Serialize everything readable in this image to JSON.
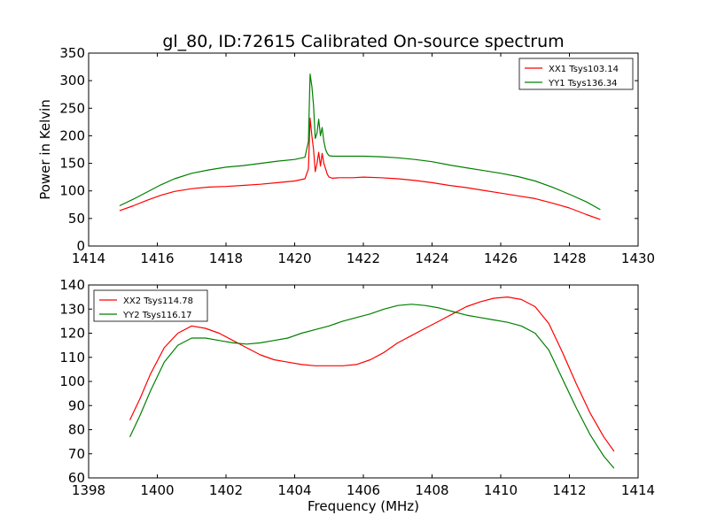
{
  "figure": {
    "title": "gl_80, ID:72615 Calibrated On-source spectrum",
    "xlabel": "Frequency (MHz)"
  },
  "chart_data": [
    {
      "type": "line",
      "title": "gl_80, ID:72615 Calibrated On-source spectrum",
      "xlabel": "",
      "ylabel": "Power in Kelvin",
      "xlim": [
        1414,
        1430
      ],
      "ylim": [
        0,
        350
      ],
      "xticks": [
        1414,
        1416,
        1418,
        1420,
        1422,
        1424,
        1426,
        1428,
        1430
      ],
      "yticks": [
        0,
        50,
        100,
        150,
        200,
        250,
        300,
        350
      ],
      "grid": false,
      "legend_position": "upper right",
      "series": [
        {
          "name": "XX1 Tsys103.14",
          "color": "#ff0000",
          "x": [
            1414.9,
            1415.3,
            1415.7,
            1416.1,
            1416.5,
            1417.0,
            1417.5,
            1418.0,
            1418.5,
            1419.0,
            1419.5,
            1420.0,
            1420.3,
            1420.4,
            1420.45,
            1420.5,
            1420.55,
            1420.6,
            1420.65,
            1420.7,
            1420.75,
            1420.8,
            1420.85,
            1420.9,
            1420.95,
            1421.0,
            1421.1,
            1421.3,
            1421.7,
            1422.0,
            1422.5,
            1423.0,
            1423.5,
            1424.0,
            1424.5,
            1425.0,
            1425.5,
            1426.0,
            1426.5,
            1427.0,
            1427.5,
            1428.0,
            1428.5,
            1428.9
          ],
          "y": [
            64,
            73,
            83,
            92,
            99,
            104,
            107,
            108,
            110,
            112,
            115,
            118,
            122,
            140,
            232,
            200,
            175,
            135,
            150,
            170,
            145,
            168,
            150,
            140,
            130,
            125,
            123,
            124,
            124,
            125,
            124,
            122,
            119,
            115,
            110,
            106,
            101,
            96,
            91,
            86,
            78,
            69,
            57,
            48
          ]
        },
        {
          "name": "YY1 Tsys136.34",
          "color": "#008000",
          "x": [
            1414.9,
            1415.3,
            1415.7,
            1416.1,
            1416.5,
            1417.0,
            1417.5,
            1418.0,
            1418.5,
            1419.0,
            1419.5,
            1420.0,
            1420.3,
            1420.4,
            1420.45,
            1420.5,
            1420.55,
            1420.6,
            1420.65,
            1420.7,
            1420.75,
            1420.8,
            1420.85,
            1420.9,
            1420.95,
            1421.0,
            1421.1,
            1421.3,
            1421.7,
            1422.0,
            1422.5,
            1423.0,
            1423.5,
            1424.0,
            1424.5,
            1425.0,
            1425.5,
            1426.0,
            1426.5,
            1427.0,
            1427.5,
            1428.0,
            1428.5,
            1428.9
          ],
          "y": [
            73,
            85,
            98,
            111,
            122,
            132,
            138,
            143,
            146,
            150,
            154,
            157,
            161,
            190,
            312,
            290,
            255,
            195,
            205,
            230,
            200,
            215,
            190,
            175,
            168,
            164,
            163,
            163,
            163,
            163,
            162,
            160,
            157,
            153,
            147,
            142,
            137,
            132,
            126,
            118,
            107,
            94,
            80,
            66
          ]
        }
      ]
    },
    {
      "type": "line",
      "title": "",
      "xlabel": "Frequency (MHz)",
      "ylabel": "",
      "xlim": [
        1398,
        1414
      ],
      "ylim": [
        60,
        140
      ],
      "xticks": [
        1398,
        1400,
        1402,
        1404,
        1406,
        1408,
        1410,
        1412,
        1414
      ],
      "yticks": [
        60,
        70,
        80,
        90,
        100,
        110,
        120,
        130,
        140
      ],
      "grid": false,
      "legend_position": "upper left",
      "series": [
        {
          "name": "XX2 Tsys114.78",
          "color": "#ff0000",
          "x": [
            1399.2,
            1399.5,
            1399.8,
            1400.2,
            1400.6,
            1401.0,
            1401.4,
            1401.8,
            1402.2,
            1402.6,
            1403.0,
            1403.4,
            1403.8,
            1404.2,
            1404.6,
            1405.0,
            1405.4,
            1405.8,
            1406.2,
            1406.6,
            1407.0,
            1407.4,
            1407.8,
            1408.2,
            1408.6,
            1409.0,
            1409.4,
            1409.8,
            1410.2,
            1410.6,
            1411.0,
            1411.4,
            1411.8,
            1412.2,
            1412.6,
            1413.0,
            1413.3
          ],
          "y": [
            84,
            93,
            103,
            114,
            120,
            123,
            122,
            120,
            117,
            114,
            111,
            109,
            108,
            107,
            106.5,
            106.5,
            106.5,
            107,
            109,
            112,
            116,
            119,
            122,
            125,
            128,
            131,
            133,
            134.5,
            135,
            134,
            131,
            124,
            112,
            99,
            87,
            77,
            71
          ]
        },
        {
          "name": "YY2 Tsys116.17",
          "color": "#008000",
          "x": [
            1399.2,
            1399.5,
            1399.8,
            1400.2,
            1400.6,
            1401.0,
            1401.4,
            1401.8,
            1402.2,
            1402.6,
            1403.0,
            1403.4,
            1403.8,
            1404.2,
            1404.6,
            1405.0,
            1405.4,
            1405.8,
            1406.2,
            1406.6,
            1407.0,
            1407.4,
            1407.8,
            1408.2,
            1408.6,
            1409.0,
            1409.4,
            1409.8,
            1410.2,
            1410.6,
            1411.0,
            1411.4,
            1411.8,
            1412.2,
            1412.6,
            1413.0,
            1413.3
          ],
          "y": [
            77,
            86,
            96,
            108,
            115,
            118,
            118,
            117,
            116,
            115.5,
            116,
            117,
            118,
            120,
            121.5,
            123,
            125,
            126.5,
            128,
            130,
            131.5,
            132,
            131.5,
            130.5,
            129,
            127.5,
            126.5,
            125.5,
            124.5,
            123,
            120,
            113,
            101,
            89,
            78,
            69,
            64
          ]
        }
      ]
    }
  ]
}
